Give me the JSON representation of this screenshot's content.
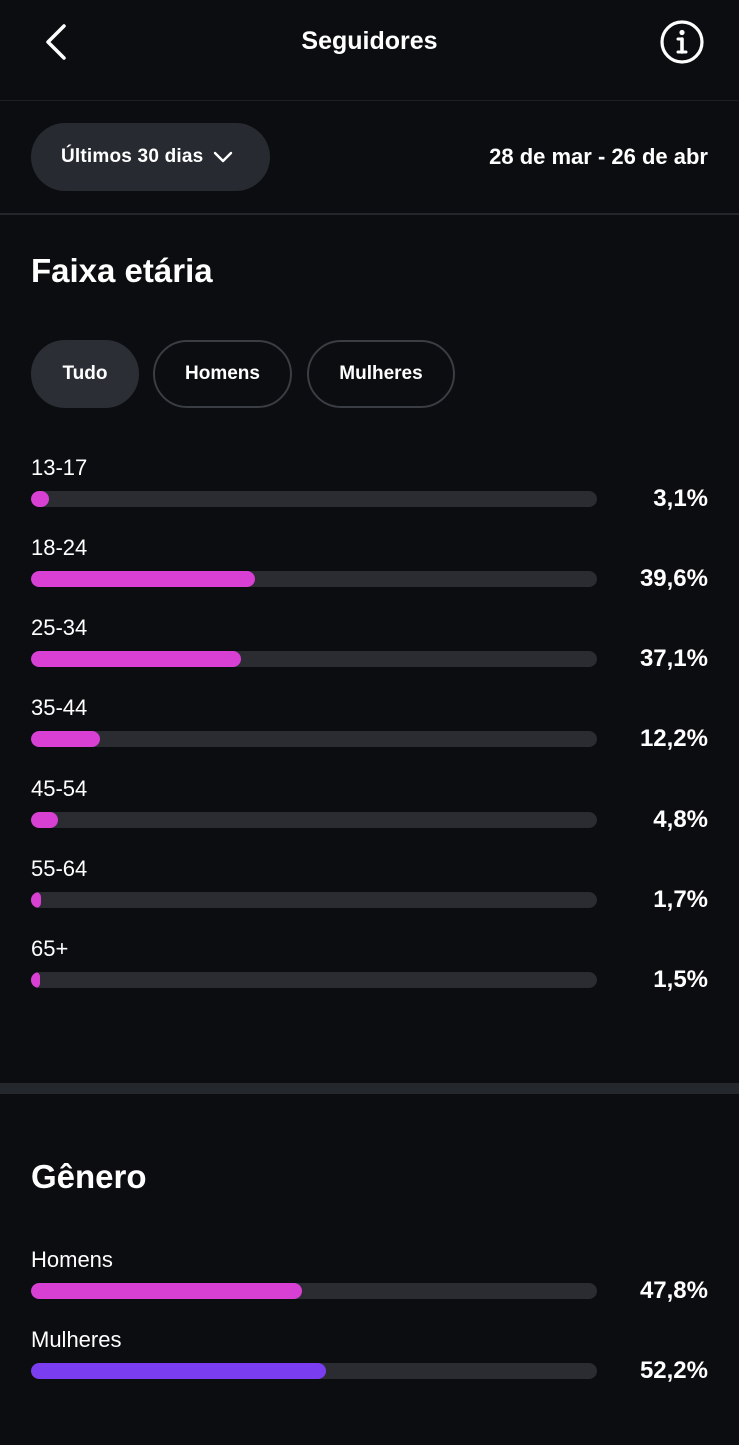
{
  "header": {
    "title": "Seguidores",
    "back_icon": "chevron-left-icon",
    "info_icon": "info-circle-icon"
  },
  "filters": {
    "period_label": "Últimos 30 dias",
    "date_range": "28 de mar - 26 de abr"
  },
  "age_section": {
    "title": "Faixa etária",
    "chips": [
      {
        "label": "Tudo",
        "active": true
      },
      {
        "label": "Homens",
        "active": false
      },
      {
        "label": "Mulheres",
        "active": false
      }
    ],
    "rows": [
      {
        "label": "13-17",
        "value": "3,1%",
        "percent": 3.1
      },
      {
        "label": "18-24",
        "value": "39,6%",
        "percent": 39.6
      },
      {
        "label": "25-34",
        "value": "37,1%",
        "percent": 37.1
      },
      {
        "label": "35-44",
        "value": "12,2%",
        "percent": 12.2
      },
      {
        "label": "45-54",
        "value": "4,8%",
        "percent": 4.8
      },
      {
        "label": "55-64",
        "value": "1,7%",
        "percent": 1.7
      },
      {
        "label": "65+",
        "value": "1,5%",
        "percent": 1.5
      }
    ],
    "bar_color": "#d83fd3"
  },
  "gender_section": {
    "title": "Gênero",
    "rows": [
      {
        "label": "Homens",
        "value": "47,8%",
        "percent": 47.8,
        "color": "#d83fd3"
      },
      {
        "label": "Mulheres",
        "value": "52,2%",
        "percent": 52.2,
        "color": "#7b3df0"
      }
    ]
  },
  "colors": {
    "background": "#0b0d10",
    "track": "#2a2c31",
    "accent_pink": "#d83fd3",
    "accent_purple": "#7b3df0"
  }
}
